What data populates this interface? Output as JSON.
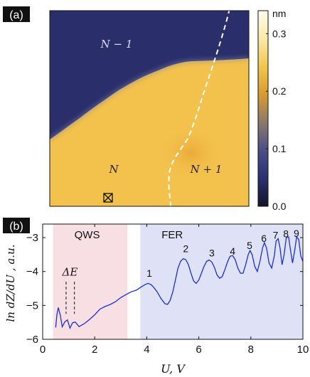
{
  "panel_a": {
    "label": "(a)",
    "colorbar": {
      "unit": "nm",
      "ticks": [
        {
          "value": 0.3,
          "label": "0.3"
        },
        {
          "value": 0.2,
          "label": "0.2"
        },
        {
          "value": 0.1,
          "label": "0.1"
        },
        {
          "value": 0.0,
          "label": "0.0"
        }
      ],
      "range": [
        0,
        0.34
      ],
      "colors": [
        "#15132a",
        "#2a3170",
        "#4a4f87",
        "#8a7a6a",
        "#d99a2e",
        "#f2c64e",
        "#fbe9a8",
        "#fffbee"
      ]
    },
    "regions": {
      "top_left": "N − 1",
      "bottom_left": "N",
      "bottom_right": "N + 1"
    },
    "marker_icon": "boxed-x-icon",
    "terrace_colors": {
      "low": "#2a2f6c",
      "mid": "#f3c24c",
      "high": "#f0b33c"
    }
  },
  "panel_b": {
    "label": "(b)",
    "chart_data": {
      "type": "line",
      "xlabel": "U, V",
      "ylabel": "ln dZ/dU , a.u.",
      "xlim": [
        0,
        10
      ],
      "ylim": [
        -6,
        -2.6
      ],
      "xticks": [
        0,
        2,
        4,
        6,
        8,
        10
      ],
      "yticks": [
        -6,
        -5,
        -4,
        -3
      ],
      "grid": false,
      "line_color": "#1a2fd8",
      "regions": [
        {
          "name": "QWS",
          "x": [
            0.4,
            3.25
          ],
          "color": "#f7dfe3"
        },
        {
          "name": "FER",
          "x": [
            3.75,
            10
          ],
          "color": "#dfe1f6"
        }
      ],
      "annotations": [
        {
          "text": "ΔE",
          "x": 1.05,
          "y": -4.12
        },
        {
          "text": "1",
          "x": 4.1,
          "y": -4.15
        },
        {
          "text": "2",
          "x": 5.5,
          "y": -3.43
        },
        {
          "text": "3",
          "x": 6.5,
          "y": -3.56
        },
        {
          "text": "4",
          "x": 7.3,
          "y": -3.5
        },
        {
          "text": "5",
          "x": 7.95,
          "y": -3.33
        },
        {
          "text": "6",
          "x": 8.5,
          "y": -3.12
        },
        {
          "text": "7",
          "x": 8.95,
          "y": -3.03
        },
        {
          "text": "8",
          "x": 9.35,
          "y": -2.99
        },
        {
          "text": "9",
          "x": 9.75,
          "y": -2.98
        }
      ],
      "dashed_markers": [
        0.9,
        1.22
      ],
      "series": [
        {
          "x": [
            0.5,
            0.55,
            0.6,
            0.68,
            0.75,
            0.85,
            0.95,
            1.05,
            1.15,
            1.25,
            1.4,
            1.6,
            1.8,
            2.0,
            2.2,
            2.4,
            2.6,
            2.8,
            3.0,
            3.2,
            3.4,
            3.6,
            3.8,
            3.95,
            4.05,
            4.15,
            4.25,
            4.4,
            4.55,
            4.7,
            4.8,
            4.9,
            5.0,
            5.1,
            5.2,
            5.3,
            5.4,
            5.5,
            5.6,
            5.7,
            5.8,
            5.9,
            6.0,
            6.1,
            6.2,
            6.3,
            6.4,
            6.5,
            6.6,
            6.7,
            6.8,
            6.9,
            7.0,
            7.1,
            7.2,
            7.3,
            7.4,
            7.5,
            7.6,
            7.7,
            7.8,
            7.9,
            7.97,
            8.05,
            8.15,
            8.25,
            8.35,
            8.45,
            8.52,
            8.6,
            8.7,
            8.8,
            8.9,
            8.97,
            9.05,
            9.12,
            9.2,
            9.28,
            9.36,
            9.45,
            9.52,
            9.6,
            9.68,
            9.76,
            9.84,
            9.92,
            10.0
          ],
          "y": [
            -5.65,
            -5.3,
            -5.1,
            -5.3,
            -5.6,
            -5.45,
            -5.42,
            -5.7,
            -5.55,
            -5.5,
            -5.6,
            -5.5,
            -5.4,
            -5.3,
            -5.15,
            -5.05,
            -4.95,
            -4.85,
            -4.75,
            -4.7,
            -4.6,
            -4.55,
            -4.45,
            -4.38,
            -4.35,
            -4.38,
            -4.45,
            -4.6,
            -4.8,
            -4.95,
            -4.97,
            -4.85,
            -4.6,
            -4.25,
            -3.9,
            -3.7,
            -3.62,
            -3.65,
            -3.8,
            -4.05,
            -4.28,
            -4.35,
            -4.25,
            -4.05,
            -3.85,
            -3.7,
            -3.66,
            -3.72,
            -3.88,
            -4.1,
            -4.2,
            -4.15,
            -3.95,
            -3.72,
            -3.55,
            -3.53,
            -3.65,
            -3.9,
            -4.05,
            -4.05,
            -3.8,
            -3.5,
            -3.38,
            -3.5,
            -3.85,
            -4.0,
            -3.7,
            -3.3,
            -3.15,
            -3.3,
            -3.75,
            -3.9,
            -3.55,
            -3.1,
            -3.03,
            -3.3,
            -3.8,
            -3.5,
            -3.0,
            -2.98,
            -3.35,
            -3.75,
            -3.4,
            -2.98,
            -3.05,
            -3.55,
            -3.7
          ]
        }
      ]
    }
  }
}
